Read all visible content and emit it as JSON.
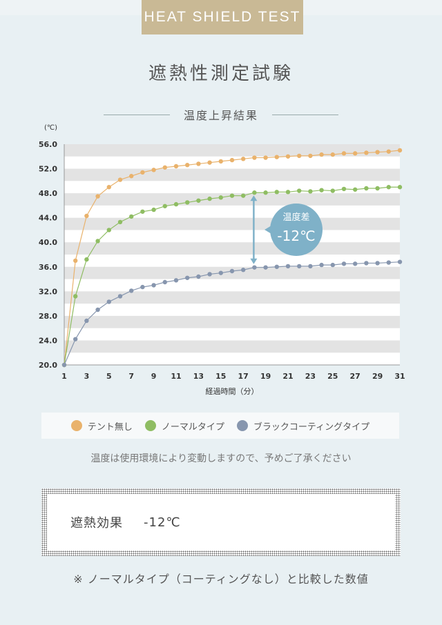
{
  "badge": "HEAT SHIELD TEST",
  "title": "遮熱性測定試験",
  "subtitle": "温度上昇結果",
  "note": "温度は使用環境により変動しますので、予めご了承ください",
  "effect": {
    "label": "遮熱効果",
    "value": "-12℃"
  },
  "footnote": "※ ノーマルタイプ（コーティングなし）と比較した数値",
  "colors": {
    "orange": "#e9b26c",
    "green": "#8fbd63",
    "blue": "#8796ae",
    "callout": "#7fb1c8"
  },
  "chart_data": {
    "type": "line",
    "ylabel": "(℃)",
    "xlabel": "経過時間（分）",
    "ylim": [
      20,
      56
    ],
    "xlim": [
      1,
      31
    ],
    "yticks": [
      "20.0",
      "24.0",
      "28.0",
      "32.0",
      "36.0",
      "40.0",
      "44.0",
      "48.0",
      "52.0",
      "56.0"
    ],
    "xticks": [
      "1",
      "3",
      "5",
      "7",
      "9",
      "11",
      "13",
      "15",
      "17",
      "19",
      "21",
      "23",
      "25",
      "27",
      "29",
      "31"
    ],
    "x": [
      1,
      2,
      3,
      4,
      5,
      6,
      7,
      8,
      9,
      10,
      11,
      12,
      13,
      14,
      15,
      16,
      17,
      18,
      19,
      20,
      21,
      22,
      23,
      24,
      25,
      26,
      27,
      28,
      29,
      30,
      31
    ],
    "series": [
      {
        "name": "テント無し",
        "color": "#e9b26c",
        "values": [
          20.0,
          37.0,
          44.3,
          47.5,
          49.0,
          50.2,
          50.8,
          51.4,
          51.8,
          52.2,
          52.4,
          52.6,
          52.8,
          53.0,
          53.2,
          53.4,
          53.6,
          53.8,
          53.8,
          53.9,
          54.0,
          54.1,
          54.1,
          54.3,
          54.3,
          54.5,
          54.5,
          54.6,
          54.7,
          54.8,
          55.0
        ]
      },
      {
        "name": "ノーマルタイプ",
        "color": "#8fbd63",
        "values": [
          20.0,
          31.2,
          37.2,
          40.2,
          42.0,
          43.3,
          44.2,
          45.0,
          45.3,
          45.9,
          46.2,
          46.5,
          46.8,
          47.1,
          47.3,
          47.6,
          47.6,
          48.1,
          48.1,
          48.2,
          48.2,
          48.4,
          48.3,
          48.5,
          48.4,
          48.7,
          48.6,
          48.8,
          48.8,
          49.0,
          49.0
        ]
      },
      {
        "name": "ブラックコーティングタイプ",
        "color": "#8796ae",
        "values": [
          20.0,
          24.2,
          27.2,
          29.0,
          30.3,
          31.2,
          32.1,
          32.7,
          33.0,
          33.5,
          33.8,
          34.2,
          34.4,
          34.8,
          35.0,
          35.3,
          35.5,
          35.9,
          35.9,
          36.0,
          36.1,
          36.1,
          36.1,
          36.3,
          36.3,
          36.5,
          36.5,
          36.6,
          36.6,
          36.7,
          36.8
        ]
      }
    ],
    "annotation": {
      "label": "温度差",
      "value": "-12℃",
      "x": 18,
      "from": 36.0,
      "to": 48.1
    },
    "grid": "horizontal-bands",
    "legend": "bottom"
  }
}
